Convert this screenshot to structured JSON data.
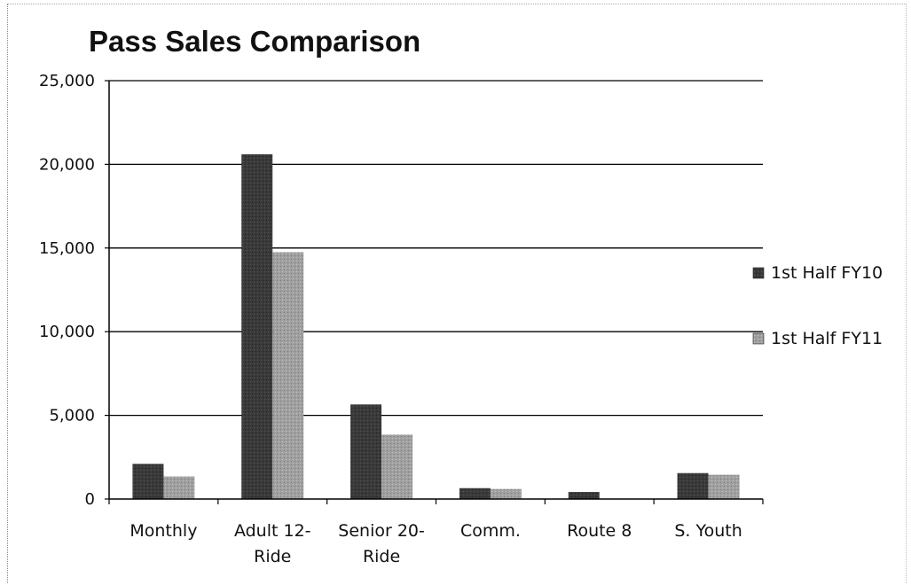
{
  "chart_data": {
    "type": "bar",
    "title": "Pass Sales Comparison",
    "xlabel": "",
    "ylabel": "",
    "categories": [
      [
        "Monthly"
      ],
      [
        "Adult 12-",
        "Ride"
      ],
      [
        "Senior 20-",
        "Ride"
      ],
      [
        "Comm."
      ],
      [
        "Route 8"
      ],
      [
        "S. Youth"
      ]
    ],
    "series": [
      {
        "name": "1st Half FY10",
        "color": "#3c3c3c",
        "values": [
          2100,
          20600,
          5650,
          650,
          420,
          1550
        ]
      },
      {
        "name": "1st Half FY11",
        "color": "#9a9a9a",
        "values": [
          1350,
          14750,
          3850,
          600,
          0,
          1450
        ]
      }
    ],
    "ylim": [
      0,
      25000
    ],
    "yticks": [
      0,
      5000,
      10000,
      15000,
      20000,
      25000
    ],
    "ytick_labels": [
      "0",
      "5,000",
      "10,000",
      "15,000",
      "20,000",
      "25,000"
    ],
    "grid": true,
    "legend_position": "right"
  }
}
